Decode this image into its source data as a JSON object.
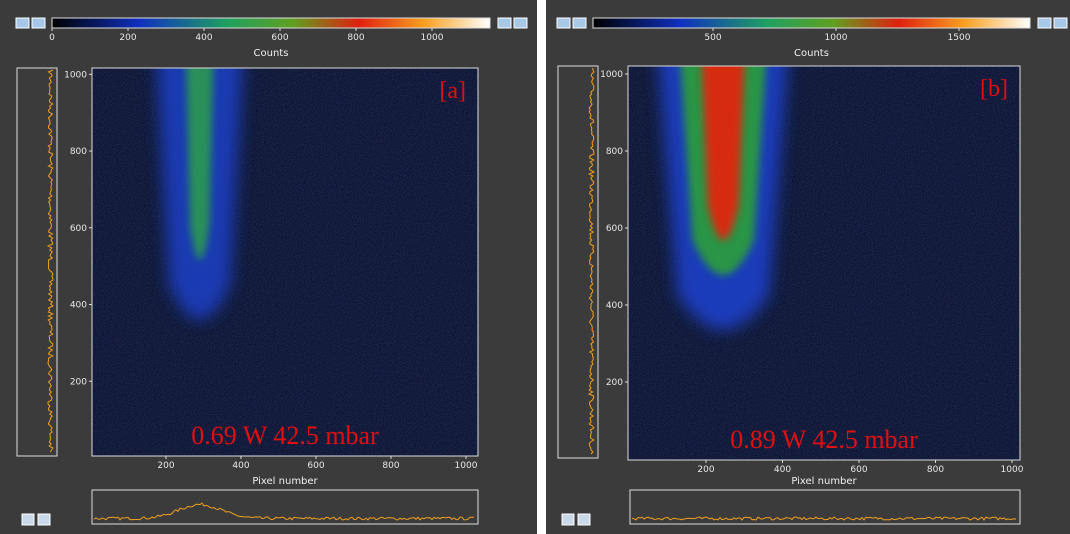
{
  "panels": [
    {
      "colorbar": {
        "ticks": [
          "0",
          "200",
          "400",
          "600",
          "800",
          "1000"
        ],
        "label": "Counts"
      },
      "y_axis": {
        "ticks": [
          "200",
          "400",
          "600",
          "800",
          "1000"
        ]
      },
      "x_axis": {
        "ticks": [
          "200",
          "400",
          "600",
          "800",
          "1000"
        ],
        "label": "Pixel number"
      },
      "tag": "[a]",
      "caption": "0.69 W 42.5 mbar"
    },
    {
      "colorbar": {
        "ticks": [
          "500",
          "1000",
          "1500"
        ],
        "label": "Counts"
      },
      "y_axis": {
        "ticks": [
          "200",
          "400",
          "600",
          "800",
          "1000"
        ]
      },
      "x_axis": {
        "ticks": [
          "200",
          "400",
          "600",
          "800",
          "1000"
        ],
        "label": "Pixel number"
      },
      "tag": "[b]",
      "caption": "0.89 W 42.5 mbar"
    }
  ]
}
